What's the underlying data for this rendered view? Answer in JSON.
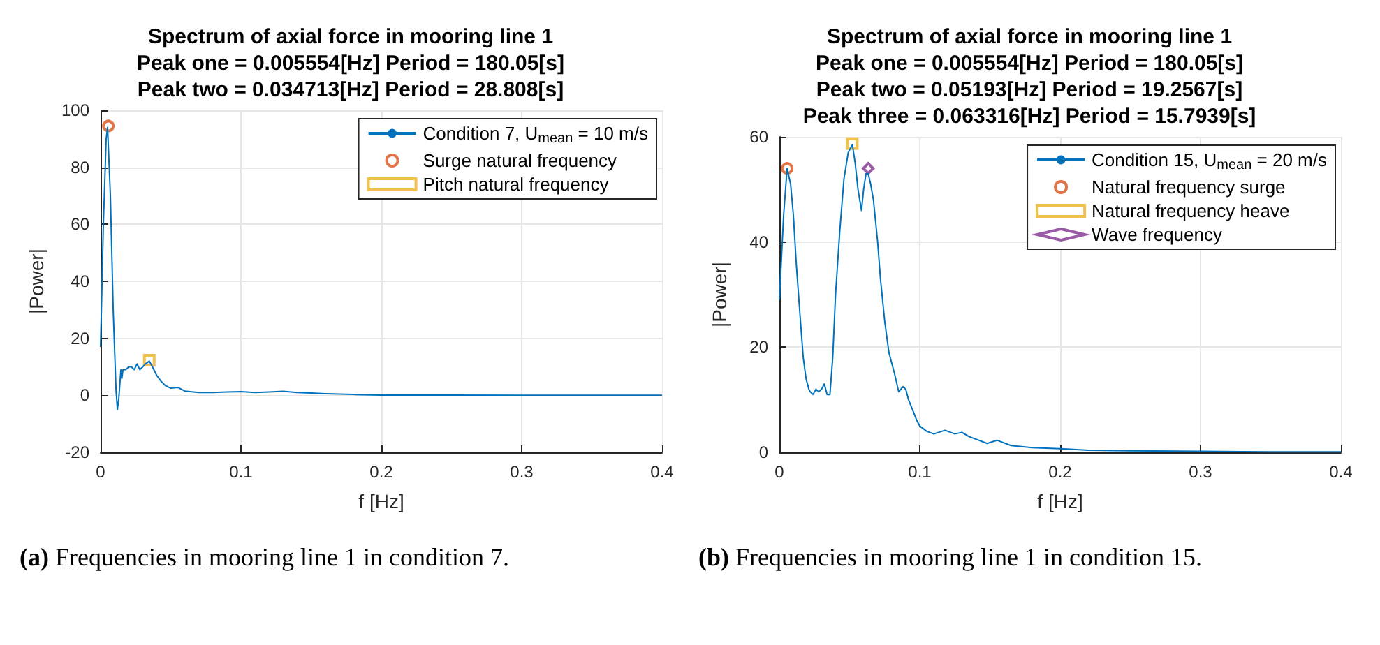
{
  "chart_data": [
    {
      "type": "line",
      "title": "Spectrum of axial force in mooring line 1\nPeak one = 0.005554[Hz] Period = 180.05[s]\nPeak two = 0.034713[Hz] Period = 28.808[s]",
      "xlabel": "f [Hz]",
      "ylabel": "|Power|",
      "xlim": [
        0,
        0.4
      ],
      "xticks": [
        0,
        0.1,
        0.2,
        0.3,
        0.4
      ],
      "ylim": [
        -20,
        100
      ],
      "yticks": [
        -20,
        0,
        20,
        40,
        60,
        80,
        100
      ],
      "grid": true,
      "legend": "top right",
      "annotations": [
        "(a) Frequencies in mooring line 1 in condition 7."
      ],
      "series": [
        {
          "name": "Condition 7, U$_{mean}$ = 10 m/s",
          "color": "#0072bd",
          "marker": "none",
          "x": [
            0,
            0.002,
            0.004,
            0.005,
            0.0056,
            0.007,
            0.009,
            0.011,
            0.012,
            0.013,
            0.0145,
            0.0152,
            0.016,
            0.018,
            0.02,
            0.022,
            0.024,
            0.026,
            0.028,
            0.03,
            0.032,
            0.0347,
            0.037,
            0.04,
            0.043,
            0.046,
            0.05,
            0.055,
            0.06,
            0.07,
            0.08,
            0.09,
            0.1,
            0.11,
            0.12,
            0.13,
            0.14,
            0.15,
            0.16,
            0.18,
            0.2,
            0.25,
            0.3,
            0.35,
            0.4
          ],
          "values": [
            17,
            60,
            90,
            94,
            94,
            70,
            30,
            2,
            -5,
            -1,
            9,
            6,
            9,
            9,
            10,
            10,
            9,
            11,
            9,
            10,
            11,
            12,
            10,
            7,
            5,
            3.5,
            2.5,
            2.8,
            1.5,
            1,
            1,
            1.2,
            1.3,
            1,
            1.2,
            1.4,
            1,
            0.8,
            0.6,
            0.3,
            0.1,
            0.1,
            0,
            0,
            0
          ]
        },
        {
          "name": "Surge natural frequency",
          "type": "scatter",
          "color": "#d95319",
          "marker": "circle",
          "x": [
            0.005554
          ],
          "values": [
            94.5
          ]
        },
        {
          "name": "Pitch natural frequency",
          "type": "scatter",
          "color": "#edb120",
          "marker": "square",
          "x": [
            0.034713
          ],
          "values": [
            12.3
          ]
        }
      ]
    },
    {
      "type": "line",
      "title": "Spectrum of axial force in mooring line 1\nPeak one = 0.005554[Hz] Period = 180.05[s]\nPeak two = 0.05193[Hz] Period = 19.2567[s]\nPeak three = 0.063316[Hz] Period = 15.7939[s]",
      "xlabel": "f [Hz]",
      "ylabel": "|Power|",
      "xlim": [
        0,
        0.4
      ],
      "xticks": [
        0,
        0.1,
        0.2,
        0.3,
        0.4
      ],
      "ylim": [
        0,
        60
      ],
      "yticks": [
        0,
        20,
        40,
        60
      ],
      "grid": true,
      "legend": "top right",
      "annotations": [
        "(b) Frequencies in mooring line 1 in condition 15."
      ],
      "series": [
        {
          "name": "Condition 15, U$_{mean}$ = 20 m/s",
          "color": "#0072bd",
          "marker": "none",
          "x": [
            0,
            0.003,
            0.0055,
            0.008,
            0.01,
            0.012,
            0.015,
            0.017,
            0.019,
            0.021,
            0.022,
            0.024,
            0.026,
            0.028,
            0.03,
            0.032,
            0.034,
            0.036,
            0.038,
            0.04,
            0.043,
            0.046,
            0.049,
            0.052,
            0.054,
            0.056,
            0.0585,
            0.06,
            0.0617,
            0.0633,
            0.065,
            0.067,
            0.07,
            0.072,
            0.075,
            0.078,
            0.08,
            0.082,
            0.085,
            0.088,
            0.09,
            0.092,
            0.095,
            0.098,
            0.1,
            0.105,
            0.11,
            0.118,
            0.125,
            0.13,
            0.135,
            0.14,
            0.148,
            0.155,
            0.165,
            0.18,
            0.2,
            0.22,
            0.25,
            0.3,
            0.35,
            0.4
          ],
          "values": [
            29,
            45,
            54,
            51,
            45,
            36,
            25,
            18,
            14,
            12,
            11.5,
            11,
            12,
            11.5,
            12,
            13,
            11,
            11,
            18,
            30,
            42,
            52,
            57,
            58.5,
            55,
            50,
            46,
            50,
            53,
            53,
            51,
            48,
            40,
            33,
            25,
            19,
            17,
            15,
            11.5,
            12.5,
            12,
            10,
            8,
            6,
            5,
            4,
            3.5,
            4.2,
            3.5,
            3.8,
            3,
            2.5,
            1.7,
            2.3,
            1.3,
            0.9,
            0.7,
            0.4,
            0.3,
            0.2,
            0.1,
            0.1
          ]
        },
        {
          "name": "Natural frequency surge",
          "type": "scatter",
          "color": "#d95319",
          "marker": "circle",
          "x": [
            0.005554
          ],
          "values": [
            54
          ]
        },
        {
          "name": "Natural frequency heave",
          "type": "scatter",
          "color": "#edb120",
          "marker": "square",
          "x": [
            0.05193
          ],
          "values": [
            58.7
          ]
        },
        {
          "name": "Wave frequency",
          "type": "scatter",
          "color": "#7e2f8e",
          "marker": "diamond",
          "x": [
            0.063316
          ],
          "values": [
            54
          ]
        }
      ]
    }
  ]
}
